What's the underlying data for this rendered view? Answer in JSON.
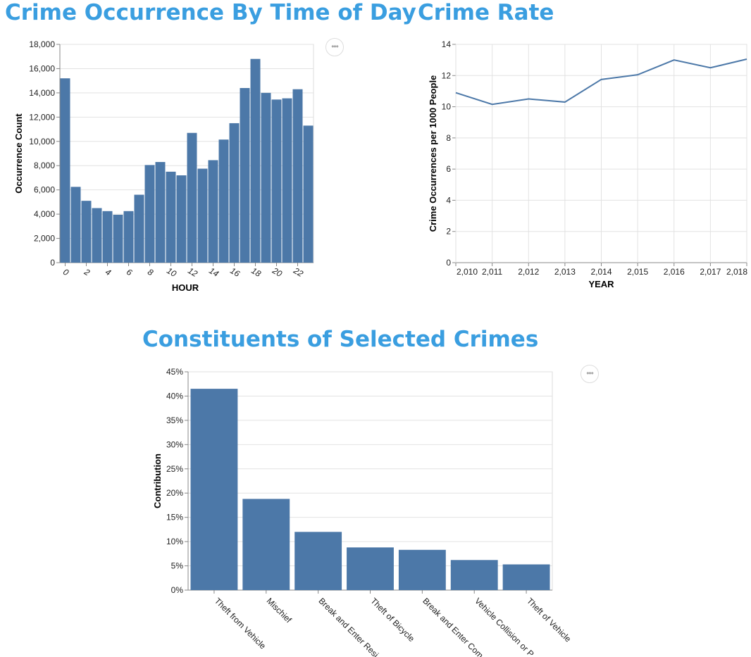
{
  "titles": {
    "chart1": "Crime Occurrence By Time of Day",
    "chart2": "Crime Rate",
    "chart3": "Constituents of Selected Crimes"
  },
  "menu_icon": "ellipsis-icon",
  "menu_label": "•••",
  "chart_data": [
    {
      "type": "bar",
      "title": "Crime Occurrence By Time of Day",
      "xlabel": "HOUR",
      "ylabel": "Occurrence Count",
      "categories": [
        0,
        1,
        2,
        3,
        4,
        5,
        6,
        7,
        8,
        9,
        10,
        11,
        12,
        13,
        14,
        15,
        16,
        17,
        18,
        19,
        20,
        21,
        22,
        23
      ],
      "values": [
        15200,
        6250,
        5100,
        4500,
        4250,
        3950,
        4250,
        5600,
        8050,
        8300,
        7500,
        7200,
        10700,
        7750,
        8450,
        10150,
        11500,
        14400,
        16800,
        14000,
        13450,
        13550,
        14300,
        11300
      ],
      "x_tick_labels": [
        "0",
        "2",
        "4",
        "6",
        "8",
        "10",
        "12",
        "14",
        "16",
        "18",
        "20",
        "22"
      ],
      "y_tick_labels": [
        "0",
        "2,000",
        "4,000",
        "6,000",
        "8,000",
        "10,000",
        "12,000",
        "14,000",
        "16,000",
        "18,000"
      ],
      "ylim": [
        0,
        18000
      ],
      "grid": true,
      "color": "#4c78a8"
    },
    {
      "type": "line",
      "title": "Crime Rate",
      "xlabel": "YEAR",
      "ylabel": "Crime Occurrences per 1000 People",
      "x": [
        2010,
        2011,
        2012,
        2013,
        2014,
        2015,
        2016,
        2017,
        2018
      ],
      "values": [
        10.9,
        10.15,
        10.5,
        10.3,
        11.75,
        12.05,
        13.0,
        12.5,
        13.05
      ],
      "x_tick_labels": [
        "2,010",
        "2,011",
        "2,012",
        "2,013",
        "2,014",
        "2,015",
        "2,016",
        "2,017",
        "2,018"
      ],
      "y_tick_labels": [
        "0",
        "2",
        "4",
        "6",
        "8",
        "10",
        "12",
        "14"
      ],
      "ylim": [
        0,
        14
      ],
      "grid": true,
      "color": "#4c78a8"
    },
    {
      "type": "bar",
      "title": "Constituents of Selected Crimes",
      "xlabel": "",
      "ylabel": "Contribution",
      "categories": [
        "Theft from Vehicle",
        "Mischief",
        "Break and Enter Residential",
        "Theft of Bicycle",
        "Break and Enter Commercial",
        "Vehicle Collision or Pedestrian",
        "Theft of Vehicle"
      ],
      "x_tick_labels": [
        "Theft from Vehicle",
        "Mischief",
        "Break and Enter Resi",
        "Theft of Bicycle",
        "Break and Enter Com",
        "Vehicle Collision or P",
        "Theft of Vehicle"
      ],
      "values": [
        0.415,
        0.188,
        0.12,
        0.088,
        0.083,
        0.062,
        0.053
      ],
      "y_tick_labels": [
        "0%",
        "5%",
        "10%",
        "15%",
        "20%",
        "25%",
        "30%",
        "35%",
        "40%",
        "45%"
      ],
      "ylim": [
        0,
        0.45
      ],
      "grid": true,
      "color": "#4c78a8"
    }
  ]
}
